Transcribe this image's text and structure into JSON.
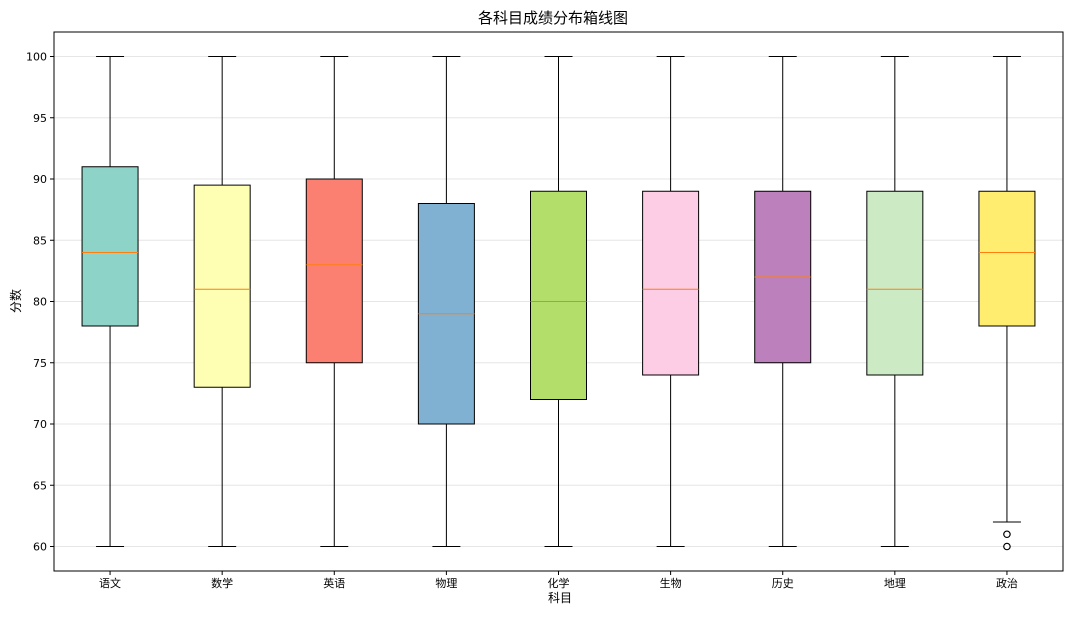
{
  "chart_data": {
    "type": "box",
    "title": "各科目成绩分布箱线图",
    "xlabel": "科目",
    "ylabel": "分数",
    "ylim": [
      58,
      102
    ],
    "yticks": [
      60,
      65,
      70,
      75,
      80,
      85,
      90,
      95,
      100
    ],
    "grid": "horizontal",
    "boxes": [
      {
        "category": "语文",
        "whisker_low": 60,
        "q1": 78,
        "median": 84,
        "q3": 91,
        "whisker_high": 100,
        "outliers": [],
        "color": "#8dd3c7"
      },
      {
        "category": "数学",
        "whisker_low": 60,
        "q1": 73,
        "median": 81,
        "q3": 89.5,
        "whisker_high": 100,
        "outliers": [],
        "color": "#ffffb3"
      },
      {
        "category": "英语",
        "whisker_low": 60,
        "q1": 75,
        "median": 83,
        "q3": 90,
        "whisker_high": 100,
        "outliers": [],
        "color": "#fb8072"
      },
      {
        "category": "物理",
        "whisker_low": 60,
        "q1": 70,
        "median": 79,
        "q3": 88,
        "whisker_high": 100,
        "outliers": [],
        "color": "#80b1d3"
      },
      {
        "category": "化学",
        "whisker_low": 60,
        "q1": 72,
        "median": 80,
        "q3": 89,
        "whisker_high": 100,
        "outliers": [],
        "color": "#b3de69"
      },
      {
        "category": "生物",
        "whisker_low": 60,
        "q1": 74,
        "median": 81,
        "q3": 89,
        "whisker_high": 100,
        "outliers": [],
        "color": "#fccde5"
      },
      {
        "category": "历史",
        "whisker_low": 60,
        "q1": 75,
        "median": 82,
        "q3": 89,
        "whisker_high": 100,
        "outliers": [],
        "color": "#bc80bd"
      },
      {
        "category": "地理",
        "whisker_low": 60,
        "q1": 74,
        "median": 81,
        "q3": 89,
        "whisker_high": 100,
        "outliers": [],
        "color": "#ccebc5"
      },
      {
        "category": "政治",
        "whisker_low": 62,
        "q1": 78,
        "median": 84,
        "q3": 89,
        "whisker_high": 100,
        "outliers": [
          61,
          60
        ],
        "color": "#ffed6f"
      }
    ],
    "median_color": "#ff7f0e"
  }
}
